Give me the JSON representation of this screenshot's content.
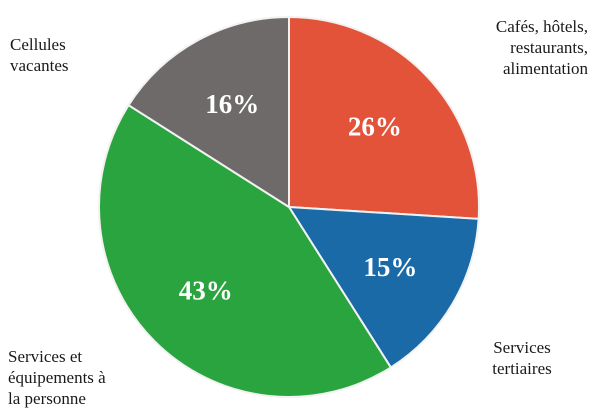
{
  "chart_data": {
    "type": "pie",
    "title": "",
    "slices": [
      {
        "label": "Cafés, hôtels,\nrestaurants,\nalimentation",
        "value": 26,
        "value_label": "26%",
        "color": "#e2533a"
      },
      {
        "label": "Services\ntertiaires",
        "value": 15,
        "value_label": "15%",
        "color": "#1b6aa8"
      },
      {
        "label": "Services et\néquipements à\nla personne",
        "value": 43,
        "value_label": "43%",
        "color": "#2aa43e"
      },
      {
        "label": "Cellules\nvacantes",
        "value": 16,
        "value_label": "16%",
        "color": "#6e6a6a"
      }
    ],
    "start_angle_deg": 0,
    "direction": "clockwise",
    "slice_border_color": "#f2f2f2"
  }
}
